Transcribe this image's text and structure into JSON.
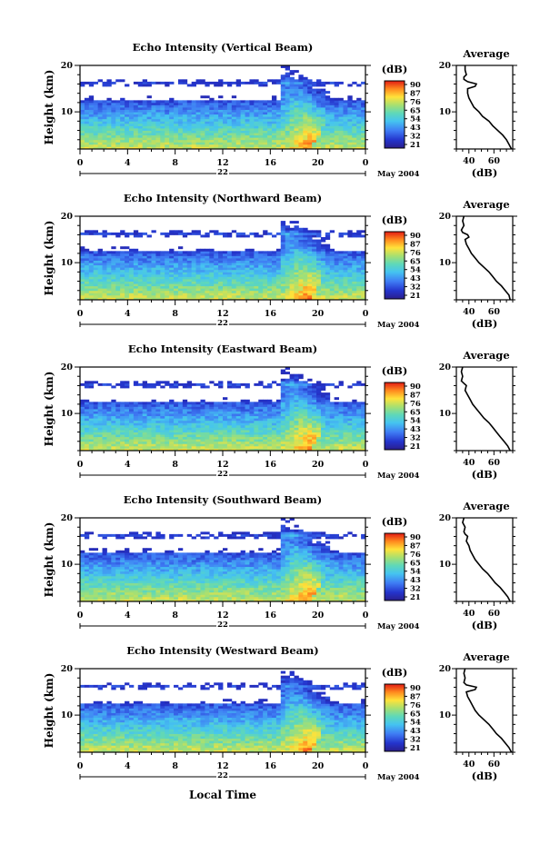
{
  "figure": {
    "xlabel": "Local Time",
    "month_label": "May 2004",
    "colorbar_unit": "(dB)",
    "colorbar_ticks": [
      "90",
      "87",
      "76",
      "65",
      "54",
      "43",
      "32",
      "21"
    ],
    "avg_title": "Average",
    "avg_xlabel": "(dB)"
  },
  "chart_data": [
    {
      "type": "heatmap",
      "title": "Echo Intensity (Vertical Beam)",
      "ylabel": "Height (km)",
      "x_ticks": [
        "0",
        "4",
        "8",
        "12",
        "16",
        "20",
        "0"
      ],
      "xlim": [
        0,
        24
      ],
      "ylim": [
        2,
        20
      ],
      "y_ticks": [
        "20",
        "10"
      ],
      "date_label": "22",
      "colorbar_range": [
        21,
        90
      ],
      "average_profile": {
        "title": "Average",
        "xlabel": "(dB)",
        "x_ticks": [
          "40",
          "60"
        ],
        "xlim": [
          30,
          75
        ],
        "height": [
          2,
          3,
          4,
          5,
          6,
          7,
          8,
          9,
          10,
          11,
          12,
          13,
          14,
          15,
          15.5,
          16,
          16.5,
          17,
          17.5,
          18,
          19,
          20
        ],
        "intensity": [
          74,
          72,
          70,
          67,
          63,
          59,
          56,
          51,
          48,
          44,
          42,
          40,
          39,
          39,
          45,
          46,
          39,
          36,
          36,
          38,
          37,
          37
        ]
      }
    },
    {
      "type": "heatmap",
      "title": "Echo Intensity (Northward Beam)",
      "ylabel": "Height (km)",
      "x_ticks": [
        "0",
        "4",
        "8",
        "12",
        "16",
        "20",
        "0"
      ],
      "xlim": [
        0,
        24
      ],
      "ylim": [
        2,
        20
      ],
      "y_ticks": [
        "20",
        "10"
      ],
      "date_label": "22",
      "colorbar_range": [
        21,
        90
      ],
      "average_profile": {
        "title": "Average",
        "xlabel": "(dB)",
        "x_ticks": [
          "40",
          "60"
        ],
        "xlim": [
          30,
          75
        ],
        "height": [
          2,
          3,
          4,
          5,
          6,
          7,
          8,
          9,
          10,
          11,
          12,
          13,
          14,
          15,
          15.5,
          16,
          16.5,
          17,
          18,
          19,
          20
        ],
        "intensity": [
          73,
          72,
          69,
          66,
          62,
          59,
          56,
          52,
          48,
          45,
          42,
          40,
          38,
          37,
          40,
          39,
          35,
          34,
          36,
          35,
          36
        ]
      }
    },
    {
      "type": "heatmap",
      "title": "Echo Intensity (Eastward Beam)",
      "ylabel": "Height (km)",
      "x_ticks": [
        "0",
        "4",
        "8",
        "12",
        "16",
        "20",
        "0"
      ],
      "xlim": [
        0,
        24
      ],
      "ylim": [
        2,
        20
      ],
      "y_ticks": [
        "20",
        "10"
      ],
      "date_label": "22",
      "colorbar_range": [
        21,
        90
      ],
      "average_profile": {
        "title": "Average",
        "xlabel": "(dB)",
        "x_ticks": [
          "40",
          "60"
        ],
        "xlim": [
          30,
          75
        ],
        "height": [
          2,
          3,
          4,
          5,
          6,
          7,
          8,
          9,
          10,
          11,
          12,
          13,
          14,
          15,
          16,
          16.5,
          17,
          18,
          19,
          20
        ],
        "intensity": [
          73,
          71,
          68,
          65,
          62,
          59,
          56,
          52,
          49,
          46,
          43,
          41,
          39,
          37,
          38,
          36,
          34,
          35,
          34,
          35
        ]
      }
    },
    {
      "type": "heatmap",
      "title": "Echo Intensity (Southward Beam)",
      "ylabel": "Height (km)",
      "x_ticks": [
        "0",
        "4",
        "8",
        "12",
        "16",
        "20",
        "0"
      ],
      "xlim": [
        0,
        24
      ],
      "ylim": [
        2,
        20
      ],
      "y_ticks": [
        "20",
        "10"
      ],
      "date_label": "22",
      "colorbar_range": [
        21,
        90
      ],
      "average_profile": {
        "title": "Average",
        "xlabel": "(dB)",
        "x_ticks": [
          "40",
          "60"
        ],
        "xlim": [
          30,
          75
        ],
        "height": [
          2,
          3,
          4,
          5,
          6,
          7,
          8,
          9,
          10,
          11,
          12,
          13,
          14,
          15,
          16,
          16.5,
          17,
          18,
          19,
          20
        ],
        "intensity": [
          73,
          71,
          68,
          65,
          61,
          58,
          55,
          51,
          48,
          45,
          43,
          41,
          40,
          38,
          39,
          37,
          36,
          37,
          35,
          36
        ]
      }
    },
    {
      "type": "heatmap",
      "title": "Echo Intensity (Westward Beam)",
      "ylabel": "Height (km)",
      "x_ticks": [
        "0",
        "4",
        "8",
        "12",
        "16",
        "20",
        "0"
      ],
      "xlim": [
        0,
        24
      ],
      "ylim": [
        2,
        20
      ],
      "y_ticks": [
        "20",
        "10"
      ],
      "date_label": "22",
      "colorbar_range": [
        21,
        90
      ],
      "average_profile": {
        "title": "Average",
        "xlabel": "(dB)",
        "x_ticks": [
          "40",
          "60"
        ],
        "xlim": [
          30,
          75
        ],
        "height": [
          2,
          3,
          4,
          5,
          6,
          7,
          8,
          9,
          10,
          11,
          12,
          13,
          14,
          15,
          15.5,
          16,
          16.5,
          17,
          18,
          19,
          20
        ],
        "intensity": [
          74,
          72,
          69,
          66,
          62,
          59,
          56,
          52,
          48,
          45,
          43,
          41,
          39,
          38,
          45,
          46,
          38,
          36,
          37,
          36,
          37
        ]
      }
    }
  ]
}
